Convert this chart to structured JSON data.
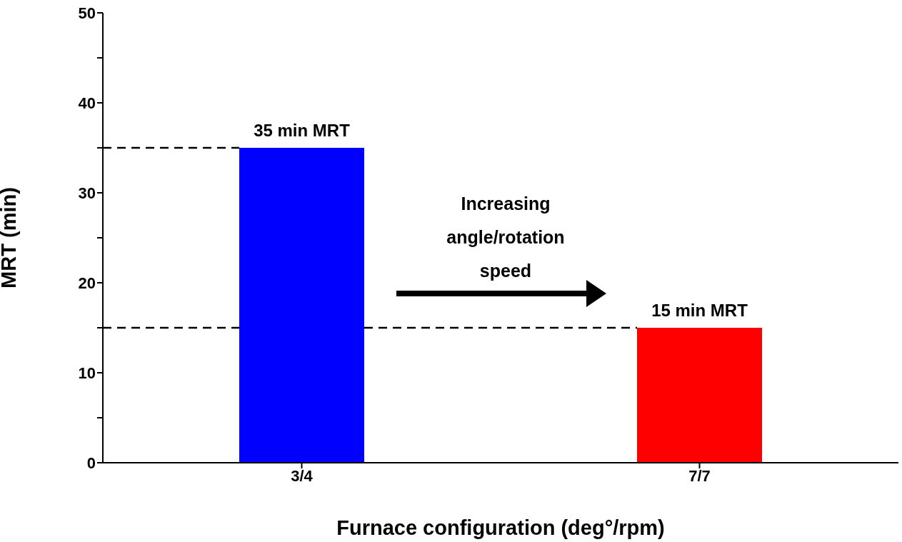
{
  "chart_data": {
    "type": "bar",
    "categories": [
      "3/4",
      "7/7"
    ],
    "values": [
      35,
      15
    ],
    "colors": [
      "#0000ff",
      "#ff0000"
    ],
    "value_labels": [
      "35 min MRT",
      "15 min MRT"
    ],
    "xlabel": "Furnace configuration (deg°/rpm)",
    "ylabel": "MRT (min)",
    "ylim": [
      0,
      50
    ],
    "yticks": [
      0,
      {
        "value": 5,
        "label": null
      },
      10,
      {
        "value": 15,
        "label": null
      },
      20,
      {
        "value": 25,
        "label": null
      },
      30,
      {
        "value": 35,
        "label": null
      },
      40,
      {
        "value": 45,
        "label": null
      },
      50
    ],
    "ref_lines": [
      {
        "axis": "y",
        "value": 35,
        "label": null,
        "color": "#000000",
        "line_style": "dashed"
      },
      {
        "axis": "y",
        "value": 15,
        "label": null,
        "color": "#000000",
        "line_style": "dashed"
      }
    ],
    "annotations": [
      "Increasing angle/rotation speed"
    ],
    "grid": false,
    "legend": false
  }
}
